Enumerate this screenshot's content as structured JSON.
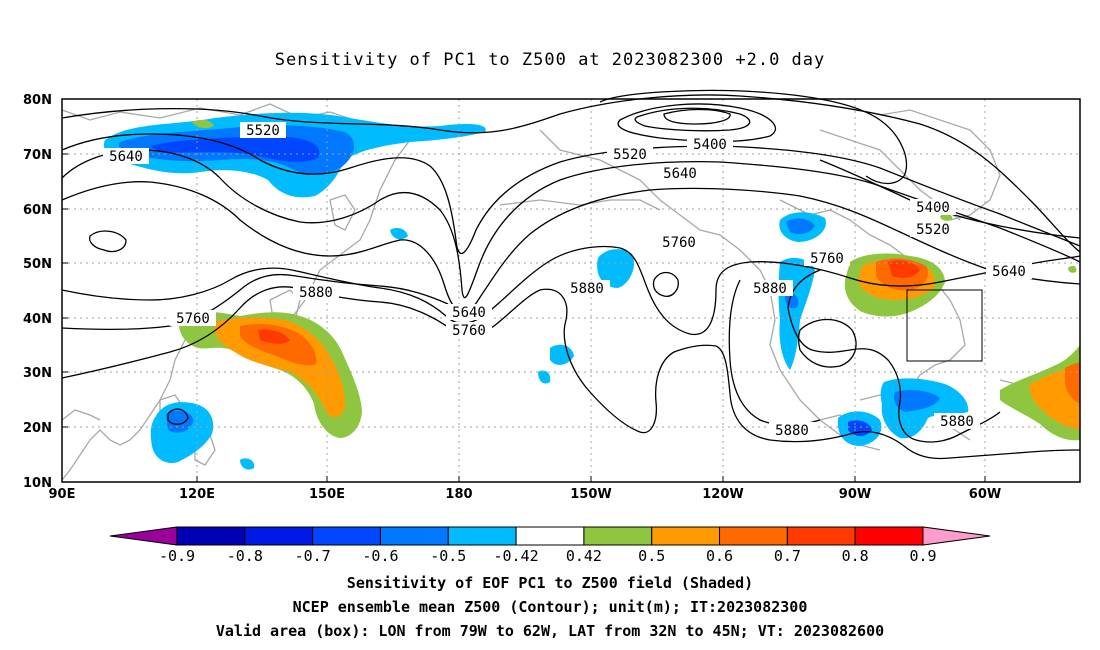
{
  "title": "Sensitivity of PC1 to Z500 at 2023082300 +2.0 day",
  "lat_labels": [
    "80N",
    "70N",
    "60N",
    "50N",
    "40N",
    "30N",
    "20N",
    "10N"
  ],
  "lon_labels": [
    "90E",
    "120E",
    "150E",
    "180",
    "150W",
    "120W",
    "90W",
    "60W"
  ],
  "colorbar": {
    "labels": [
      "-0.9",
      "-0.8",
      "-0.7",
      "-0.6",
      "-0.5",
      "-0.42",
      "0.42",
      "0.5",
      "0.6",
      "0.7",
      "0.8",
      "0.9"
    ],
    "colors": [
      "#9b009b",
      "#0000b4",
      "#0018e6",
      "#0046ff",
      "#0078ff",
      "#00bcff",
      "#ffffff",
      "#8ec63f",
      "#ff9a00",
      "#ff6a00",
      "#ff3a00",
      "#ff0000",
      "#ff9ccc"
    ]
  },
  "contour_labels": {
    "c5520_a": "5520",
    "c5640_a": "5640",
    "c5520_b": "5520",
    "c5400_a": "5400",
    "c5640_b": "5640",
    "c5400_b": "5400",
    "c5520_c": "5520",
    "c5760_a": "5760",
    "c5760_b": "5760",
    "c5880_a": "5880",
    "c5640_c": "5640",
    "c5760_c": "5760",
    "c5880_b": "5880",
    "c5880_c": "5880",
    "c5760_d": "5760",
    "c5640_d": "5640",
    "c5880_d": "5880",
    "c5880_e": "5880"
  },
  "captions": {
    "line1": "Sensitivity of EOF PC1 to Z500 field (Shaded)",
    "line2": "NCEP ensemble mean Z500 (Contour); unit(m); IT:2023082300",
    "line3": "Valid area (box): LON from 79W to 62W, LAT from 32N to 45N; VT: 2023082600"
  }
}
